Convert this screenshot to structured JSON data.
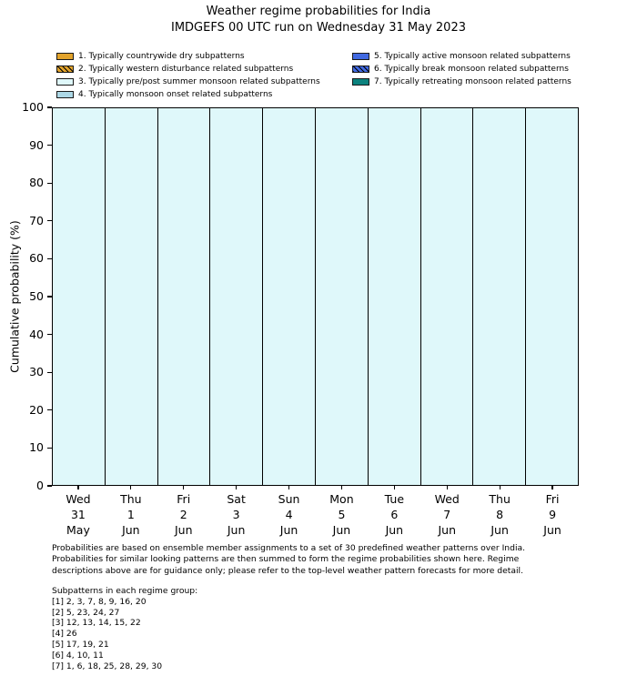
{
  "legend": [
    {
      "number": 1,
      "label": "1. Typically countrywide dry subpatterns",
      "color": "#E2A32C",
      "hatch": false
    },
    {
      "number": 2,
      "label": "2. Typically western disturbance related subpatterns",
      "color": "#E2A32C",
      "hatch": true
    },
    {
      "number": 3,
      "label": "3. Typically pre/post summer monsoon related subpatterns",
      "color": "#DFF8FA",
      "hatch": false
    },
    {
      "number": 4,
      "label": "4. Typically monsoon onset related subpatterns",
      "color": "#ADD8E6",
      "hatch": false
    },
    {
      "number": 5,
      "label": "5. Typically active monsoon related subpatterns",
      "color": "#4169E1",
      "hatch": false
    },
    {
      "number": 6,
      "label": "6. Typically break monsoon related subpatterns",
      "color": "#4169E1",
      "hatch": true
    },
    {
      "number": 7,
      "label": "7. Typically retreating monsoon related patterns",
      "color": "#0C827E",
      "hatch": false
    }
  ],
  "chart_data": {
    "type": "bar",
    "stacked": true,
    "title": "Weather regime probabilities for India",
    "subtitle": "IMDGEFS 00 UTC run on Wednesday 31 May 2023",
    "ylabel": "Cumulative probability (%)",
    "ylim": [
      0,
      100
    ],
    "yticks": [
      0,
      10,
      20,
      30,
      40,
      50,
      60,
      70,
      80,
      90,
      100
    ],
    "grid": false,
    "legend_position": "top",
    "bar_edge_color": "#000000",
    "categories": [
      {
        "dow": "Wed",
        "day": "31",
        "mon": "May"
      },
      {
        "dow": "Thu",
        "day": "1",
        "mon": "Jun"
      },
      {
        "dow": "Fri",
        "day": "2",
        "mon": "Jun"
      },
      {
        "dow": "Sat",
        "day": "3",
        "mon": "Jun"
      },
      {
        "dow": "Sun",
        "day": "4",
        "mon": "Jun"
      },
      {
        "dow": "Mon",
        "day": "5",
        "mon": "Jun"
      },
      {
        "dow": "Tue",
        "day": "6",
        "mon": "Jun"
      },
      {
        "dow": "Wed",
        "day": "7",
        "mon": "Jun"
      },
      {
        "dow": "Thu",
        "day": "8",
        "mon": "Jun"
      },
      {
        "dow": "Fri",
        "day": "9",
        "mon": "Jun"
      }
    ],
    "series": [
      {
        "regime": 1,
        "name": "1. Typically countrywide dry subpatterns",
        "values": [
          0,
          0,
          0,
          0,
          0,
          0,
          0,
          0,
          0,
          0
        ]
      },
      {
        "regime": 2,
        "name": "2. Typically western disturbance related subpatterns",
        "values": [
          0,
          0,
          0,
          0,
          0,
          0,
          0,
          0,
          0,
          0
        ]
      },
      {
        "regime": 3,
        "name": "3. Typically pre/post summer monsoon related subpatterns",
        "values": [
          100,
          100,
          100,
          100,
          100,
          100,
          100,
          100,
          100,
          100
        ]
      },
      {
        "regime": 4,
        "name": "4. Typically monsoon onset related subpatterns",
        "values": [
          0,
          0,
          0,
          0,
          0,
          0,
          0,
          0,
          0,
          0
        ]
      },
      {
        "regime": 5,
        "name": "5. Typically active monsoon related subpatterns",
        "values": [
          0,
          0,
          0,
          0,
          0,
          0,
          0,
          0,
          0,
          0
        ]
      },
      {
        "regime": 6,
        "name": "6. Typically break monsoon related subpatterns",
        "values": [
          0,
          0,
          0,
          0,
          0,
          0,
          0,
          0,
          0,
          0
        ]
      },
      {
        "regime": 7,
        "name": "7. Typically retreating monsoon related patterns",
        "values": [
          0,
          0,
          0,
          0,
          0,
          0,
          0,
          0,
          0,
          0
        ]
      }
    ]
  },
  "footnote": {
    "lines": [
      "Probabilities are based on ensemble member assignments to a set of 30 predefined weather patterns over India.",
      "Probabilities for similar looking patterns are then summed to form the regime probabilities shown here. Regime",
      "descriptions above are for guidance only; please refer to the top-level weather pattern forecasts for more detail."
    ]
  },
  "subpatterns": {
    "heading": "Subpatterns in each regime group:",
    "groups": [
      "[1] 2, 3, 7, 8, 9, 16, 20",
      "[2] 5, 23, 24, 27",
      "[3] 12, 13, 14, 15, 22",
      "[4] 26",
      "[5] 17, 19, 21",
      "[6] 4, 10, 11",
      "[7] 1, 6, 18, 25, 28, 29, 30"
    ]
  }
}
